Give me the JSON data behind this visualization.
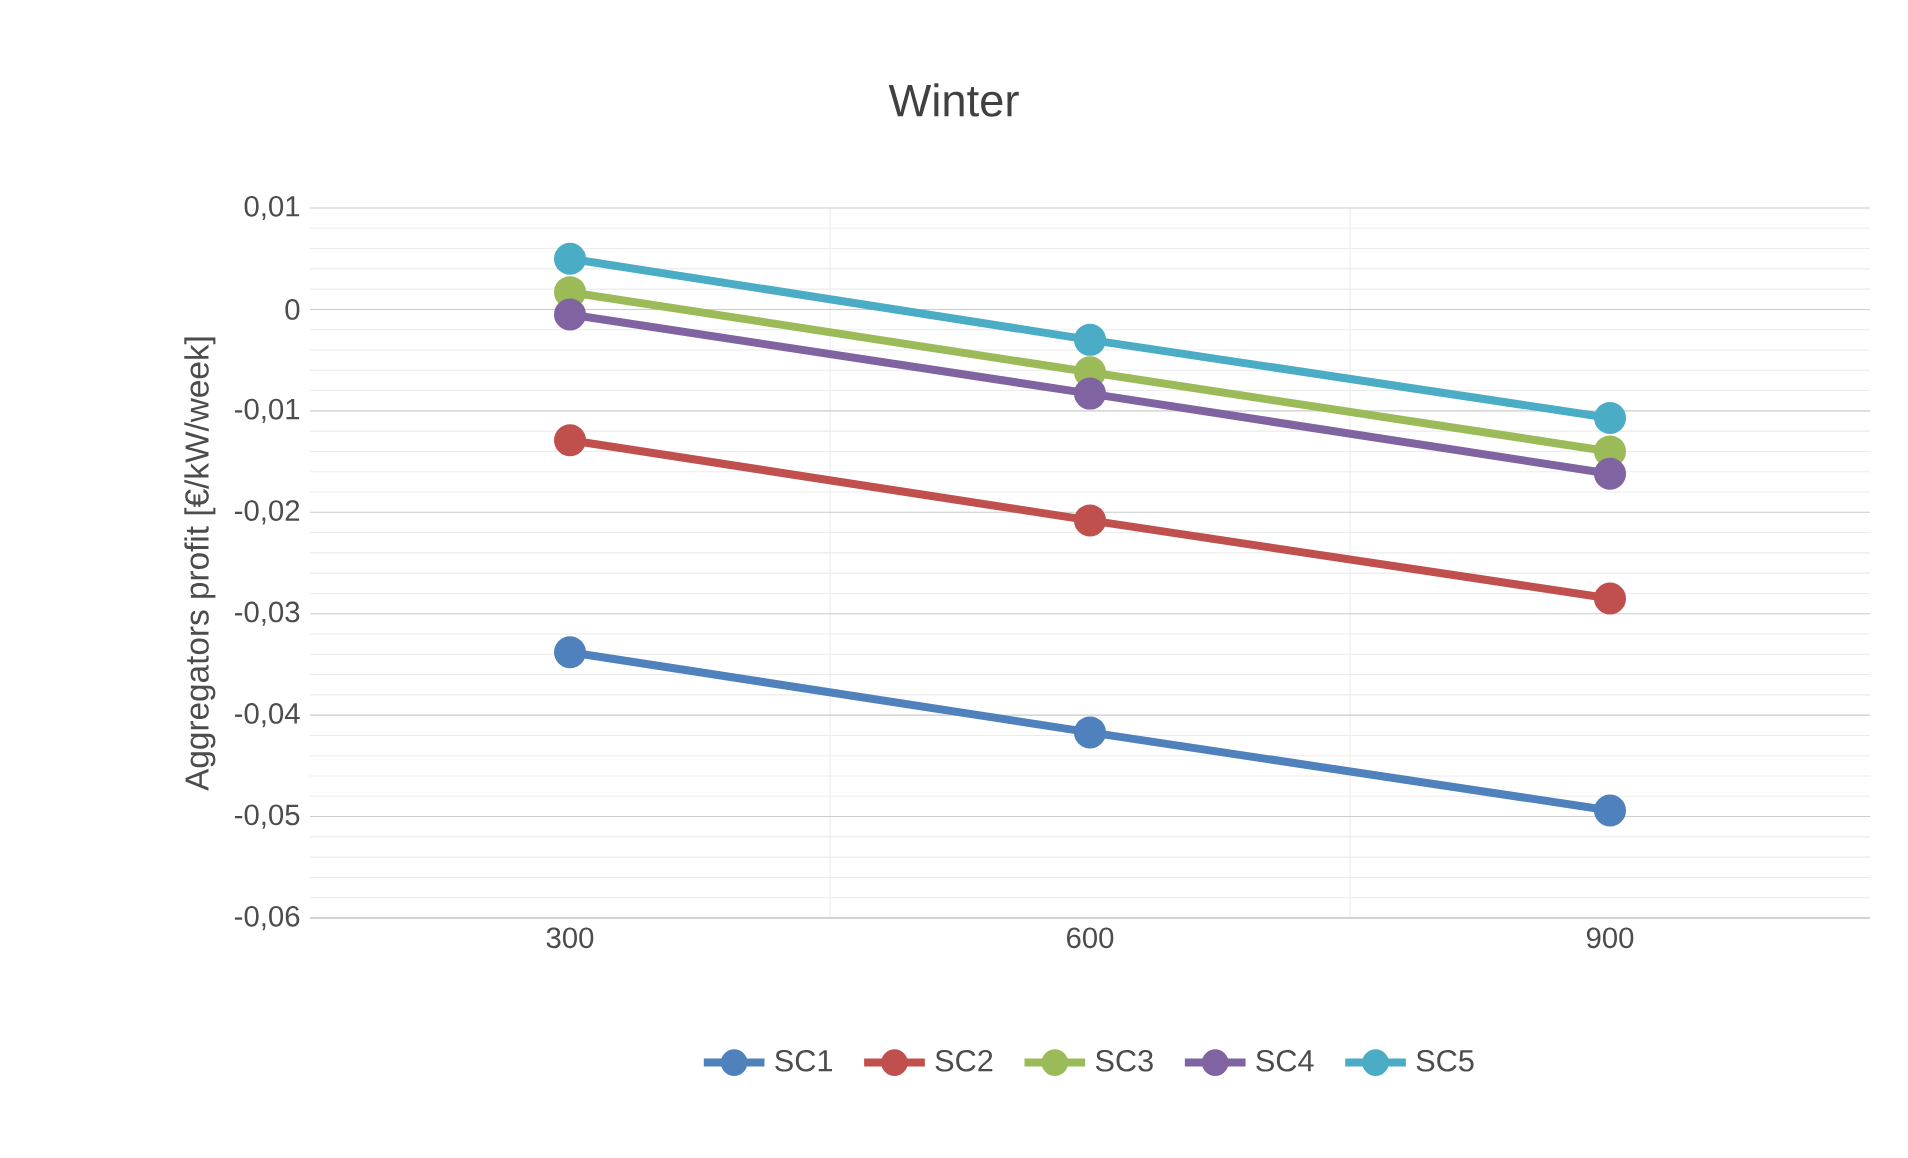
{
  "chart_data": {
    "type": "line",
    "title": "Winter",
    "ylabel": "Aggregators profit [€/kW/week]",
    "categories": [
      "300",
      "600",
      "900"
    ],
    "series": [
      {
        "name": "SC1",
        "color": "#4f81bd",
        "values": [
          -0.0338,
          -0.0417,
          -0.0494
        ]
      },
      {
        "name": "SC2",
        "color": "#c0504d",
        "values": [
          -0.0129,
          -0.0208,
          -0.0285
        ]
      },
      {
        "name": "SC3",
        "color": "#9bbb59",
        "values": [
          0.0017,
          -0.0062,
          -0.014
        ]
      },
      {
        "name": "SC4",
        "color": "#8064a2",
        "values": [
          -0.0005,
          -0.0083,
          -0.0162
        ]
      },
      {
        "name": "SC5",
        "color": "#4bacc6",
        "values": [
          0.005,
          -0.003,
          -0.0107
        ]
      }
    ],
    "ylim": [
      -0.06,
      0.01
    ],
    "yticks": [
      {
        "value": -0.06,
        "label": "-0,06"
      },
      {
        "value": -0.05,
        "label": "-0,05"
      },
      {
        "value": -0.04,
        "label": "-0,04"
      },
      {
        "value": -0.03,
        "label": "-0,03"
      },
      {
        "value": -0.02,
        "label": "-0,02"
      },
      {
        "value": -0.01,
        "label": "-0,01"
      },
      {
        "value": 0,
        "label": "0"
      },
      {
        "value": 0.01,
        "label": "0,01"
      }
    ],
    "grid": true,
    "legend": "bottom",
    "marker": "circle",
    "line_style": "solid"
  }
}
